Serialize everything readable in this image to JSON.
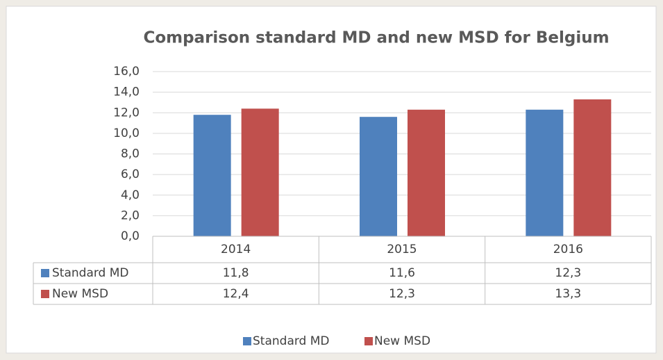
{
  "chart_data": {
    "type": "bar",
    "title": "Comparison standard MD and new MSD for Belgium",
    "categories": [
      "2014",
      "2015",
      "2016"
    ],
    "series": [
      {
        "name": "Standard MD",
        "color": "#4f81bd",
        "values": [
          11.8,
          11.6,
          12.3
        ],
        "value_labels": [
          "11,8",
          "11,6",
          "12,3"
        ]
      },
      {
        "name": "New MSD",
        "color": "#c0504d",
        "values": [
          12.4,
          12.3,
          13.3
        ],
        "value_labels": [
          "12,4",
          "12,3",
          "13,3"
        ]
      }
    ],
    "ylim": [
      0,
      16
    ],
    "yticks": [
      {
        "value": 0,
        "label": "0,0"
      },
      {
        "value": 2,
        "label": "2,0"
      },
      {
        "value": 4,
        "label": "4,0"
      },
      {
        "value": 6,
        "label": "6,0"
      },
      {
        "value": 8,
        "label": "8,0"
      },
      {
        "value": 10,
        "label": "10,0"
      },
      {
        "value": 12,
        "label": "12,0"
      },
      {
        "value": 14,
        "label": "14,0"
      },
      {
        "value": 16,
        "label": "16,0"
      }
    ],
    "grid": true,
    "legend": "bottom"
  }
}
